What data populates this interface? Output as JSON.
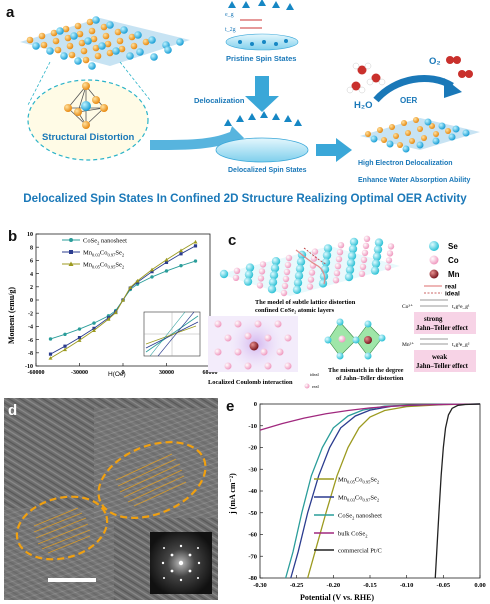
{
  "panel_a": {
    "letter": "a",
    "structural_distortion": "Structural Distortion",
    "pristine_spin_states": "Pristine Spin States",
    "delocalization": "Delocalization",
    "delocalized_spin_states": "Delocalized Spin States",
    "oer": "OER",
    "h2o": "H₂O",
    "o2": "O₂",
    "high_electron_delocalization": "High Electron Delocalization",
    "enhance_water_absorption": "Enhance Water Absorption Ability",
    "eg": "e_g",
    "t2g": "t_2g"
  },
  "figure_title": "Delocalized Spin States In Confined 2D Structure Realizing Optimal OER Activity",
  "panel_b": {
    "letter": "b",
    "ylabel": "Moment (emu/g)",
    "xlabel": "H(Oe)"
  },
  "panel_c": {
    "letter": "c",
    "legend": [
      "Se",
      "Co",
      "Mn"
    ],
    "legend_real": "real",
    "legend_ideal": "ideal",
    "model_caption_1": "The model of subtle lattice distortion",
    "model_caption_2": "confined CoSe₂ atomic layers",
    "coulomb_caption": "Localized Coulomb interaction",
    "small_ideal": "ideal",
    "small_real": "real",
    "co3": "Co³⁺",
    "mn2": "Mn²⁺",
    "co_config": "t₂g⁶e_g¹",
    "mn_config": "t₂g³e_g²",
    "strong_1": "strong",
    "strong_2": "Jahn–Teller effect",
    "weak_1": "weak",
    "weak_2": "Jahn–Teller effect",
    "mismatch_1": "The mismatch in the degree",
    "mismatch_2": "of Jahn–Teller distortion"
  },
  "panel_d": {
    "letter": "d"
  },
  "panel_e": {
    "letter": "e",
    "ylabel": "j (mA cm⁻²)",
    "xlabel": "Potential (V vs. RHE)"
  },
  "chart_data": [
    {
      "type": "line",
      "panel": "b",
      "xlabel": "H(Oe)",
      "ylabel": "Moment (emu/g)",
      "xlim": [
        -60000,
        60000
      ],
      "ylim": [
        -10,
        10
      ],
      "xticks": [
        "-60000",
        "-30000",
        "0",
        "30000",
        "60000"
      ],
      "yticks": [
        "10",
        "8",
        "6",
        "4",
        "2",
        "0",
        "-2",
        "-4",
        "-6",
        "-8",
        "-10"
      ],
      "series": [
        {
          "name": "CoSe₂ nanosheet",
          "color": "#2a9d9a",
          "marker": "circle",
          "x": [
            -50000,
            -40000,
            -30000,
            -20000,
            -10000,
            -5000,
            0,
            5000,
            10000,
            20000,
            30000,
            40000,
            50000
          ],
          "y": [
            -5.9,
            -5.2,
            -4.4,
            -3.5,
            -2.4,
            -1.6,
            0,
            1.6,
            2.4,
            3.5,
            4.4,
            5.2,
            5.9
          ]
        },
        {
          "name": "Mn₀.₀₃Co₀.₉₇Se₂",
          "color": "#2b3c8f",
          "marker": "square",
          "x": [
            -50000,
            -40000,
            -30000,
            -20000,
            -10000,
            -5000,
            0,
            5000,
            10000,
            20000,
            30000,
            40000,
            50000
          ],
          "y": [
            -8.2,
            -7.0,
            -5.7,
            -4.3,
            -2.7,
            -1.8,
            0,
            1.8,
            2.7,
            4.3,
            5.7,
            7.0,
            8.2
          ]
        },
        {
          "name": "Mn₀.₀₅Co₀.₉₅Se₂",
          "color": "#9c9a1f",
          "marker": "triangle",
          "x": [
            -50000,
            -40000,
            -30000,
            -20000,
            -10000,
            -5000,
            0,
            5000,
            10000,
            20000,
            30000,
            40000,
            50000
          ],
          "y": [
            -8.8,
            -7.5,
            -6.1,
            -4.6,
            -2.9,
            -1.9,
            0,
            1.9,
            2.9,
            4.6,
            6.1,
            7.5,
            8.8
          ]
        }
      ]
    },
    {
      "type": "line",
      "panel": "e",
      "xlabel": "Potential (V vs. RHE)",
      "ylabel": "j (mA cm⁻²)",
      "xlim": [
        -0.3,
        0.0
      ],
      "ylim": [
        -80,
        0
      ],
      "xticks": [
        "-0.30",
        "-0.25",
        "-0.20",
        "-0.15",
        "-0.10",
        "-0.05",
        "0.00"
      ],
      "yticks": [
        "0",
        "-10",
        "-20",
        "-30",
        "-40",
        "-50",
        "-60",
        "-70",
        "-80"
      ],
      "series": [
        {
          "name": "Mn₀.₀₅Co₀.₉₅Se₂",
          "color": "#9c9a1f",
          "x": [
            -0.235,
            -0.225,
            -0.21,
            -0.195,
            -0.18,
            -0.165,
            -0.15,
            -0.13,
            -0.1,
            -0.05,
            0.0
          ],
          "y": [
            -80,
            -68,
            -50,
            -33,
            -20,
            -11,
            -6,
            -3,
            -1.2,
            -0.3,
            0
          ]
        },
        {
          "name": "Mn₀.₀₃Co₀.₉₇Se₂",
          "color": "#2b3c8f",
          "x": [
            -0.258,
            -0.248,
            -0.235,
            -0.22,
            -0.205,
            -0.19,
            -0.17,
            -0.15,
            -0.12,
            -0.07,
            0.0
          ],
          "y": [
            -80,
            -68,
            -50,
            -33,
            -20,
            -11,
            -5.5,
            -2.8,
            -1,
            -0.3,
            0
          ]
        },
        {
          "name": "CoSe₂ nanosheet",
          "color": "#2a9d9a",
          "x": [
            -0.265,
            -0.255,
            -0.243,
            -0.23,
            -0.215,
            -0.2,
            -0.18,
            -0.16,
            -0.13,
            -0.08,
            0.0
          ],
          "y": [
            -80,
            -68,
            -50,
            -33,
            -20,
            -11,
            -5.5,
            -2.8,
            -1,
            -0.3,
            0
          ]
        },
        {
          "name": "bulk CoSe₂",
          "color": "#a0287e",
          "x": [
            -0.3,
            -0.27,
            -0.24,
            -0.21,
            -0.18,
            -0.15,
            -0.12,
            -0.09,
            -0.05,
            0.0
          ],
          "y": [
            -12,
            -9,
            -6.5,
            -4.5,
            -3,
            -1.8,
            -1,
            -0.5,
            -0.2,
            0
          ]
        },
        {
          "name": "commercial Pt/C",
          "color": "#222222",
          "x": [
            -0.061,
            -0.059,
            -0.056,
            -0.053,
            -0.05,
            -0.047,
            -0.043,
            -0.038,
            -0.03,
            -0.02,
            0.0
          ],
          "y": [
            -80,
            -68,
            -50,
            -33,
            -20,
            -11,
            -5,
            -2,
            -0.6,
            -0.2,
            0
          ]
        }
      ]
    }
  ]
}
